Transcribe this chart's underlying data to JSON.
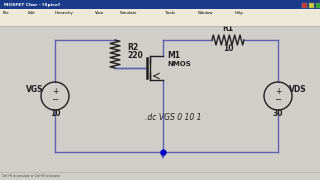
{
  "bg_color": "#d0d0d0",
  "canvas_color": "#c8c8c8",
  "titlebar_color": "#1a3a8a",
  "wire_color": "#6060b0",
  "comp_color": "#202020",
  "circuit": {
    "vgs_label": "VGS",
    "vgs_value": "10",
    "r2_label": "R2",
    "r2_value": "220",
    "m1_label": "M1",
    "nmos_label": "NMOS",
    "r1_label": "R1",
    "r1_value": "10",
    "vds_label": "VDS",
    "vds_value": "30",
    "spice_cmd": ".dc VGS 0 10 1"
  },
  "status_text": "Ctrl+R to simulate or Ctrl+B to browse",
  "menu_items": [
    "File",
    "Edit",
    "Hierarchy",
    "View",
    "Simulate",
    "Tools",
    "Window",
    "Help"
  ]
}
